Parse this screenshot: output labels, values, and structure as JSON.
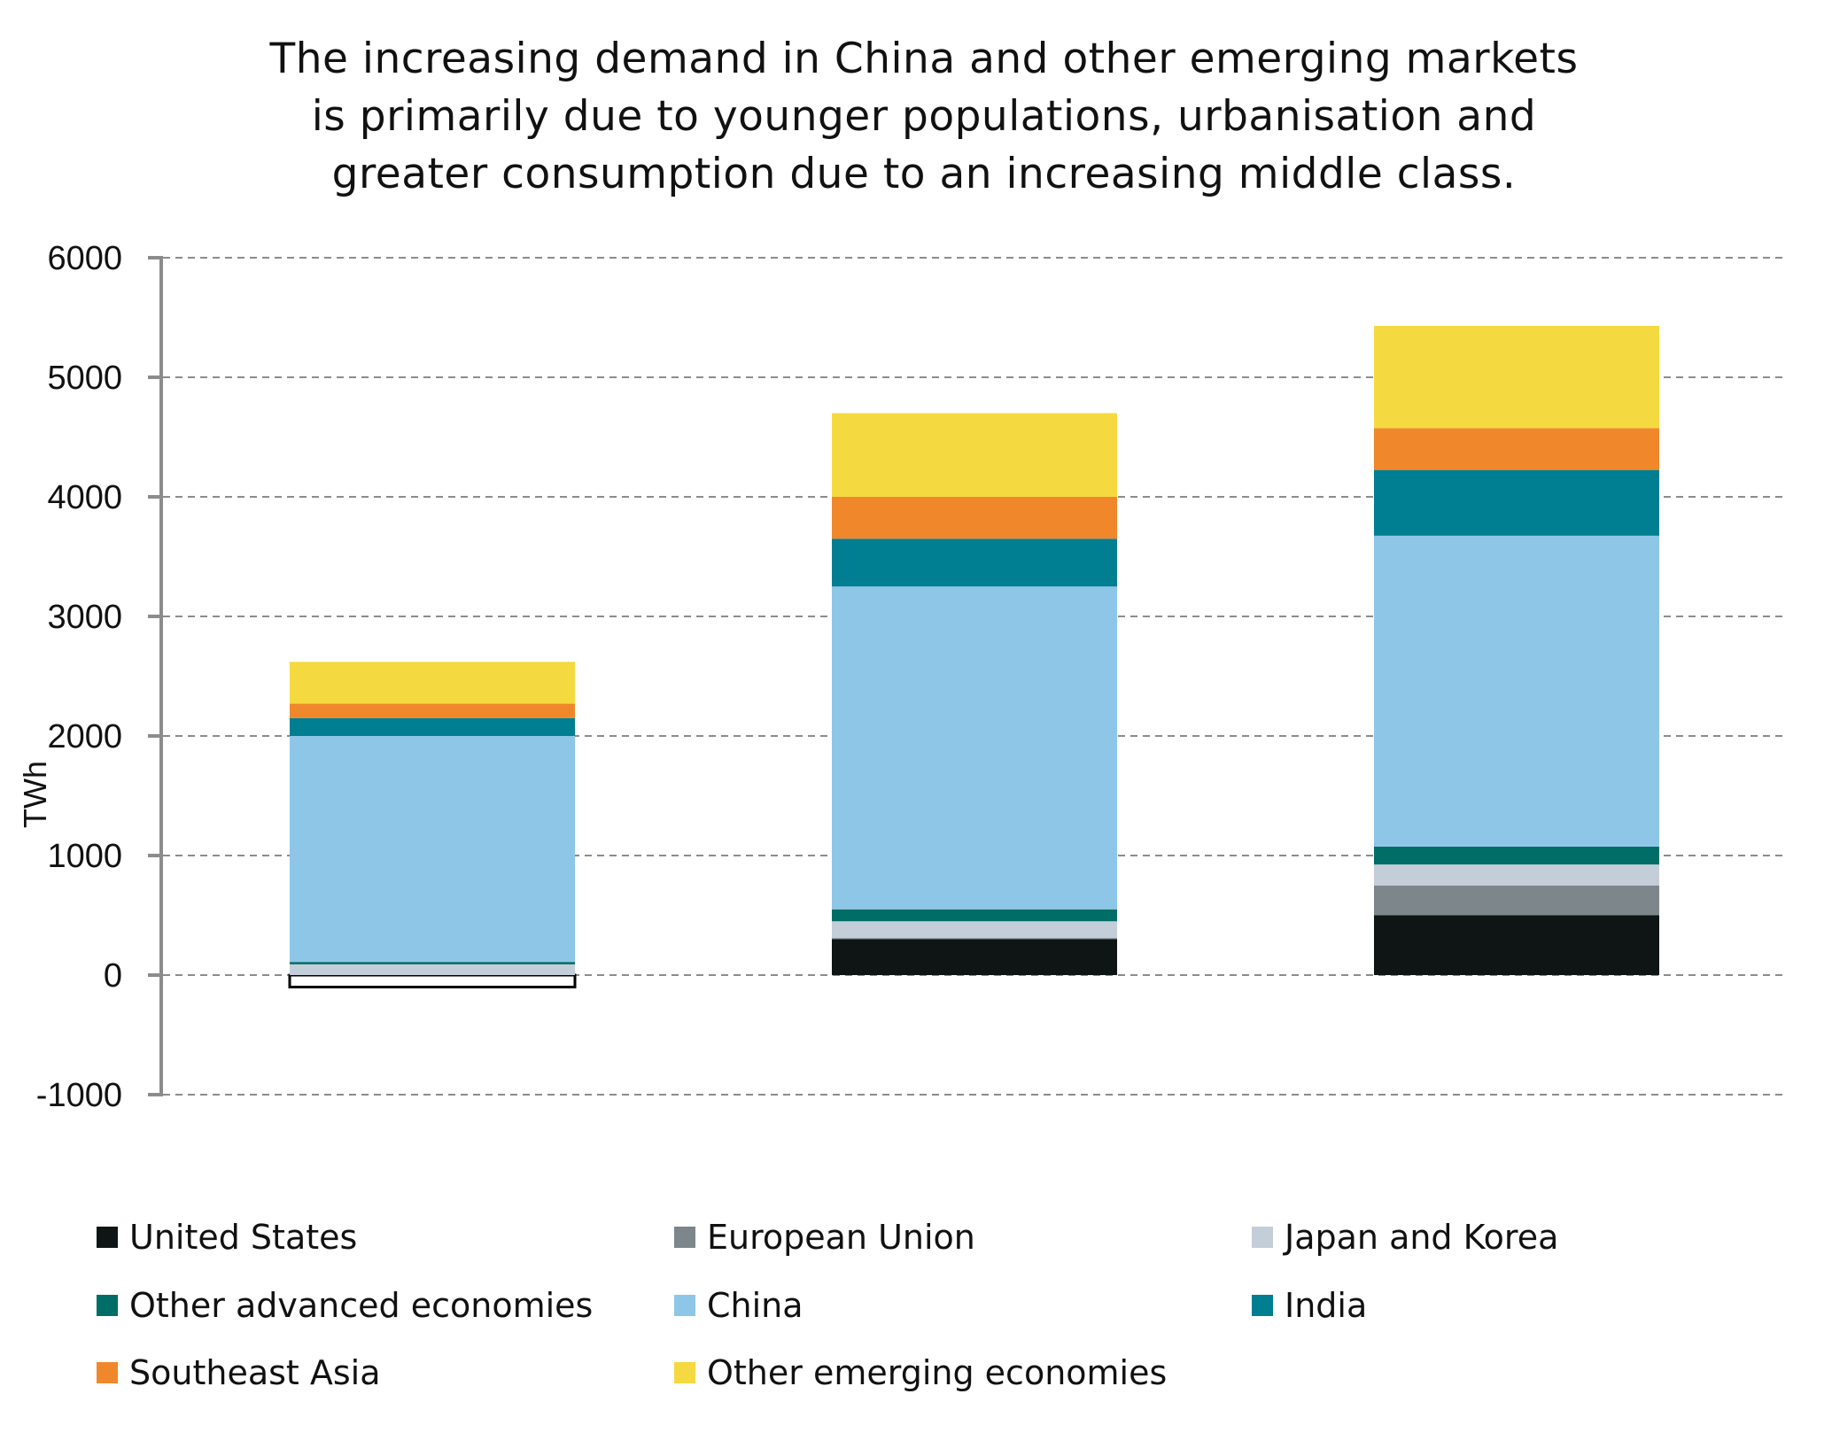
{
  "title": {
    "lines": [
      "The increasing demand in China and other emerging markets",
      "is primarily due to younger populations, urbanisation and",
      "greater consumption due to an increasing middle class."
    ]
  },
  "chart_data": {
    "type": "bar",
    "stacked": true,
    "title": "The increasing demand in China and other emerging markets is primarily due to younger populations, urbanisation and greater consumption due to an increasing middle class.",
    "xlabel": "",
    "ylabel": "TWh",
    "ylim": [
      -1000,
      6000
    ],
    "yticks": [
      -1000,
      0,
      1000,
      2000,
      3000,
      4000,
      5000,
      6000
    ],
    "grid": true,
    "legend_position": "bottom",
    "categories": [
      "",
      "",
      ""
    ],
    "series": [
      {
        "name": "United States",
        "color": "#0f1515",
        "values": [
          -100,
          300,
          500
        ]
      },
      {
        "name": "European Union",
        "color": "#7c868b",
        "values": [
          0,
          10,
          250
        ]
      },
      {
        "name": "Japan and Korea",
        "color": "#c4ced9",
        "values": [
          90,
          140,
          175
        ]
      },
      {
        "name": "Other advanced economies",
        "color": "#006d66",
        "values": [
          20,
          100,
          150
        ]
      },
      {
        "name": "China",
        "color": "#8ec6e8",
        "values": [
          1890,
          2700,
          2600
        ]
      },
      {
        "name": "India",
        "color": "#007e92",
        "values": [
          150,
          400,
          550
        ]
      },
      {
        "name": "Southeast Asia",
        "color": "#f0882b",
        "values": [
          120,
          350,
          350
        ]
      },
      {
        "name": "Other emerging economies",
        "color": "#f5d940",
        "values": [
          350,
          700,
          855
        ]
      }
    ],
    "totals": [
      2620,
      4700,
      5430
    ],
    "negative_style": {
      "fill": "#ffffff",
      "stroke": "#000000"
    }
  },
  "axis": {
    "ylabel": "TWh",
    "ticks": [
      "6000",
      "5000",
      "4000",
      "3000",
      "2000",
      "1000",
      "0",
      "-1000"
    ]
  },
  "legend": {
    "items": [
      {
        "label": "United States",
        "color": "#0f1515"
      },
      {
        "label": "European Union",
        "color": "#7c868b"
      },
      {
        "label": "Japan and Korea",
        "color": "#c4ced9"
      },
      {
        "label": "Other advanced economies",
        "color": "#006d66"
      },
      {
        "label": "China",
        "color": "#8ec6e8"
      },
      {
        "label": "India",
        "color": "#007e92"
      },
      {
        "label": "Southeast Asia",
        "color": "#f0882b"
      },
      {
        "label": "Other emerging economies",
        "color": "#f5d940"
      }
    ]
  },
  "colors": {
    "axis": "#8c8c8c",
    "grid": "#8c8c8c",
    "text": "#111111"
  }
}
